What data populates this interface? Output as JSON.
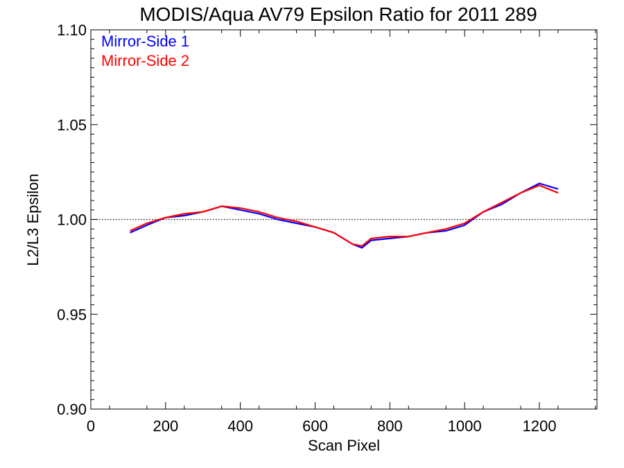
{
  "chart_data": {
    "type": "line",
    "title": "MODIS/Aqua AV79 Epsilon Ratio for 2011 289",
    "xlabel": "Scan Pixel",
    "ylabel": "L2/L3 Epsilon",
    "xlim": [
      0,
      1354
    ],
    "ylim": [
      0.9,
      1.1
    ],
    "xticks": [
      0,
      200,
      400,
      600,
      800,
      1000,
      1200
    ],
    "yticks": [
      0.9,
      0.95,
      1.0,
      1.05,
      1.1
    ],
    "xtick_labels": [
      "0",
      "200",
      "400",
      "600",
      "800",
      "1000",
      "1200"
    ],
    "ytick_labels": [
      "0.90",
      "0.95",
      "1.00",
      "1.05",
      "1.10"
    ],
    "reference_line": {
      "y": 1.0,
      "style": "dotted"
    },
    "grid": false,
    "legend": {
      "placement": "top-left"
    },
    "x": [
      105,
      150,
      200,
      250,
      300,
      350,
      400,
      450,
      500,
      550,
      600,
      650,
      700,
      725,
      750,
      800,
      850,
      900,
      950,
      1000,
      1050,
      1100,
      1150,
      1200,
      1250
    ],
    "series": [
      {
        "name": "Mirror-Side 1",
        "color": "#0000ff",
        "values": [
          0.993,
          0.997,
          1.001,
          1.002,
          1.004,
          1.007,
          1.005,
          1.003,
          1.0,
          0.998,
          0.996,
          0.993,
          0.987,
          0.985,
          0.989,
          0.99,
          0.991,
          0.993,
          0.994,
          0.997,
          1.004,
          1.008,
          1.014,
          1.019,
          1.016
        ]
      },
      {
        "name": "Mirror-Side 2",
        "color": "#ff0000",
        "values": [
          0.994,
          0.998,
          1.001,
          1.003,
          1.004,
          1.007,
          1.006,
          1.004,
          1.001,
          0.999,
          0.996,
          0.993,
          0.987,
          0.986,
          0.99,
          0.991,
          0.991,
          0.993,
          0.995,
          0.998,
          1.004,
          1.009,
          1.014,
          1.018,
          1.014
        ]
      }
    ]
  }
}
